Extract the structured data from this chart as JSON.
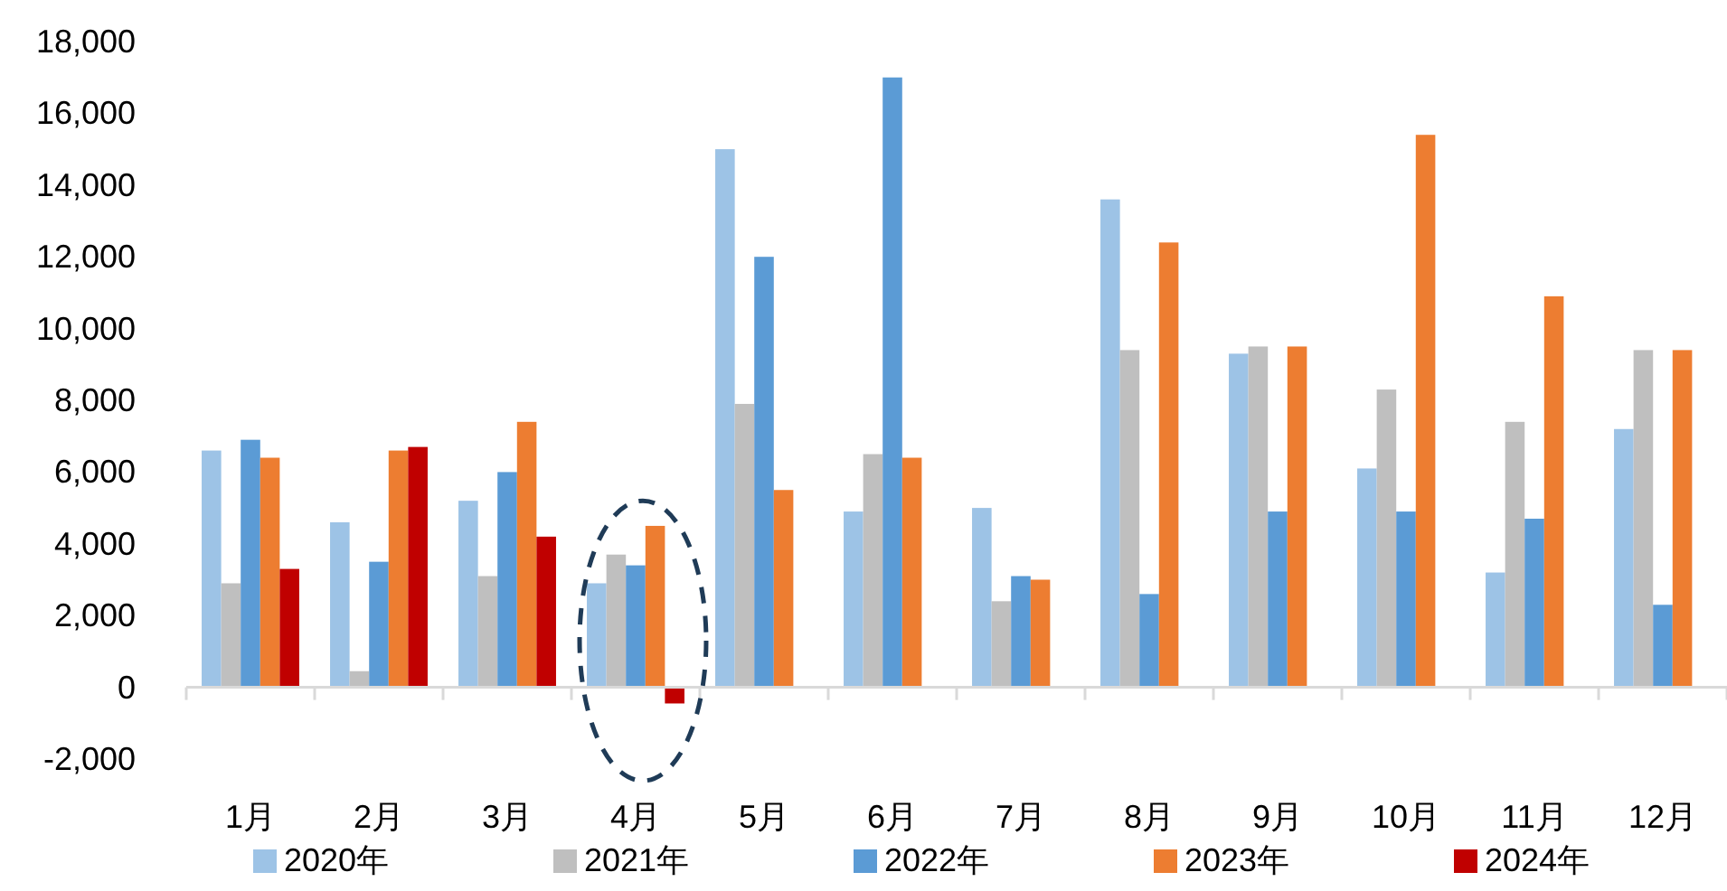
{
  "chart_data": {
    "type": "bar",
    "categories": [
      "1月",
      "2月",
      "3月",
      "4月",
      "5月",
      "6月",
      "7月",
      "8月",
      "9月",
      "10月",
      "11月",
      "12月"
    ],
    "series": [
      {
        "name": "2020年",
        "color": "#9dc3e6",
        "values": [
          6600,
          4600,
          5200,
          2900,
          15000,
          4900,
          5000,
          13600,
          9300,
          6100,
          3200,
          7200
        ]
      },
      {
        "name": "2021年",
        "color": "#bfbfbf",
        "values": [
          2900,
          450,
          3100,
          3700,
          7900,
          6500,
          2400,
          9400,
          9500,
          8300,
          7400,
          9400
        ]
      },
      {
        "name": "2022年",
        "color": "#5b9bd5",
        "values": [
          6900,
          3500,
          6000,
          3400,
          12000,
          17000,
          3100,
          2600,
          4900,
          4900,
          4700,
          2300
        ]
      },
      {
        "name": "2023年",
        "color": "#ed7d31",
        "values": [
          6400,
          6600,
          7400,
          4500,
          5500,
          6400,
          3000,
          12400,
          9500,
          15400,
          10900,
          9400
        ]
      },
      {
        "name": "2024年",
        "color": "#c00000",
        "values": [
          3300,
          6700,
          4200,
          -450,
          null,
          null,
          null,
          null,
          null,
          null,
          null,
          null
        ]
      }
    ],
    "ylim": [
      -2000,
      18000
    ],
    "yticks": [
      {
        "value": -2000,
        "label": "-2,000"
      },
      {
        "value": 0,
        "label": "0"
      },
      {
        "value": 2000,
        "label": "2,000"
      },
      {
        "value": 4000,
        "label": "4,000"
      },
      {
        "value": 6000,
        "label": "6,000"
      },
      {
        "value": 8000,
        "label": "8,000"
      },
      {
        "value": 10000,
        "label": "10,000"
      },
      {
        "value": 12000,
        "label": "12,000"
      },
      {
        "value": 14000,
        "label": "14,000"
      },
      {
        "value": 16000,
        "label": "16,000"
      },
      {
        "value": 18000,
        "label": "18,000"
      }
    ],
    "legend": "bottom"
  }
}
